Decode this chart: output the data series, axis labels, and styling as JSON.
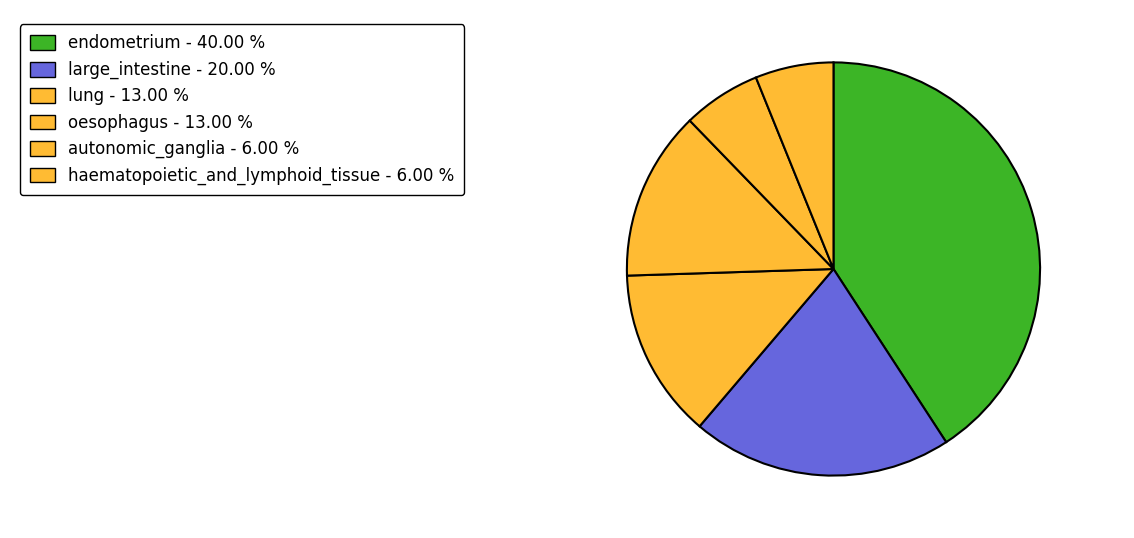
{
  "labels": [
    "endometrium",
    "large_intestine",
    "lung",
    "oesophagus",
    "autonomic_ganglia",
    "haematopoietic_and_lymphoid_tissue"
  ],
  "values": [
    40.0,
    20.0,
    13.0,
    13.0,
    6.0,
    6.0
  ],
  "colors": [
    "#3cb526",
    "#6666dd",
    "#ffbb33",
    "#ffbb33",
    "#ffbb33",
    "#ffbb33"
  ],
  "legend_labels": [
    "endometrium - 40.00 %",
    "large_intestine - 20.00 %",
    "lung - 13.00 %",
    "oesophagus - 13.00 %",
    "autonomic_ganglia - 6.00 %",
    "haematopoietic_and_lymphoid_tissue - 6.00 %"
  ],
  "edgecolor": "black",
  "linewidth": 1.5,
  "startangle": 90,
  "figsize": [
    11.34,
    5.38
  ],
  "dpi": 100,
  "legend_fontsize": 12
}
